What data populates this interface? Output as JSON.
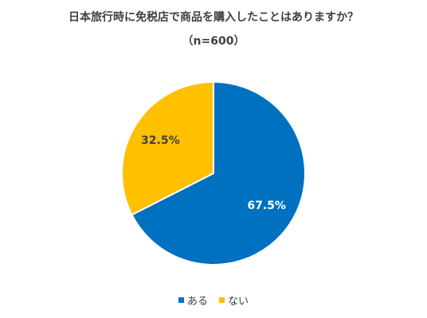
{
  "colors": {
    "aru": "#0070C0",
    "nai": "#FFC000",
    "label_on_blue": "#FFFFFF",
    "label_on_yellow": "#404040"
  },
  "chart_data": {
    "type": "pie",
    "title": "日本旅行時に免税店で商品を購入したことはありますか？",
    "subtitle": "（n=600）",
    "categories": [
      "ある",
      "ない"
    ],
    "values": [
      67.5,
      32.5
    ],
    "data_labels": [
      "67.5%",
      "32.5%"
    ],
    "legend_position": "bottom",
    "start_angle_deg": 0,
    "direction": "clockwise"
  }
}
